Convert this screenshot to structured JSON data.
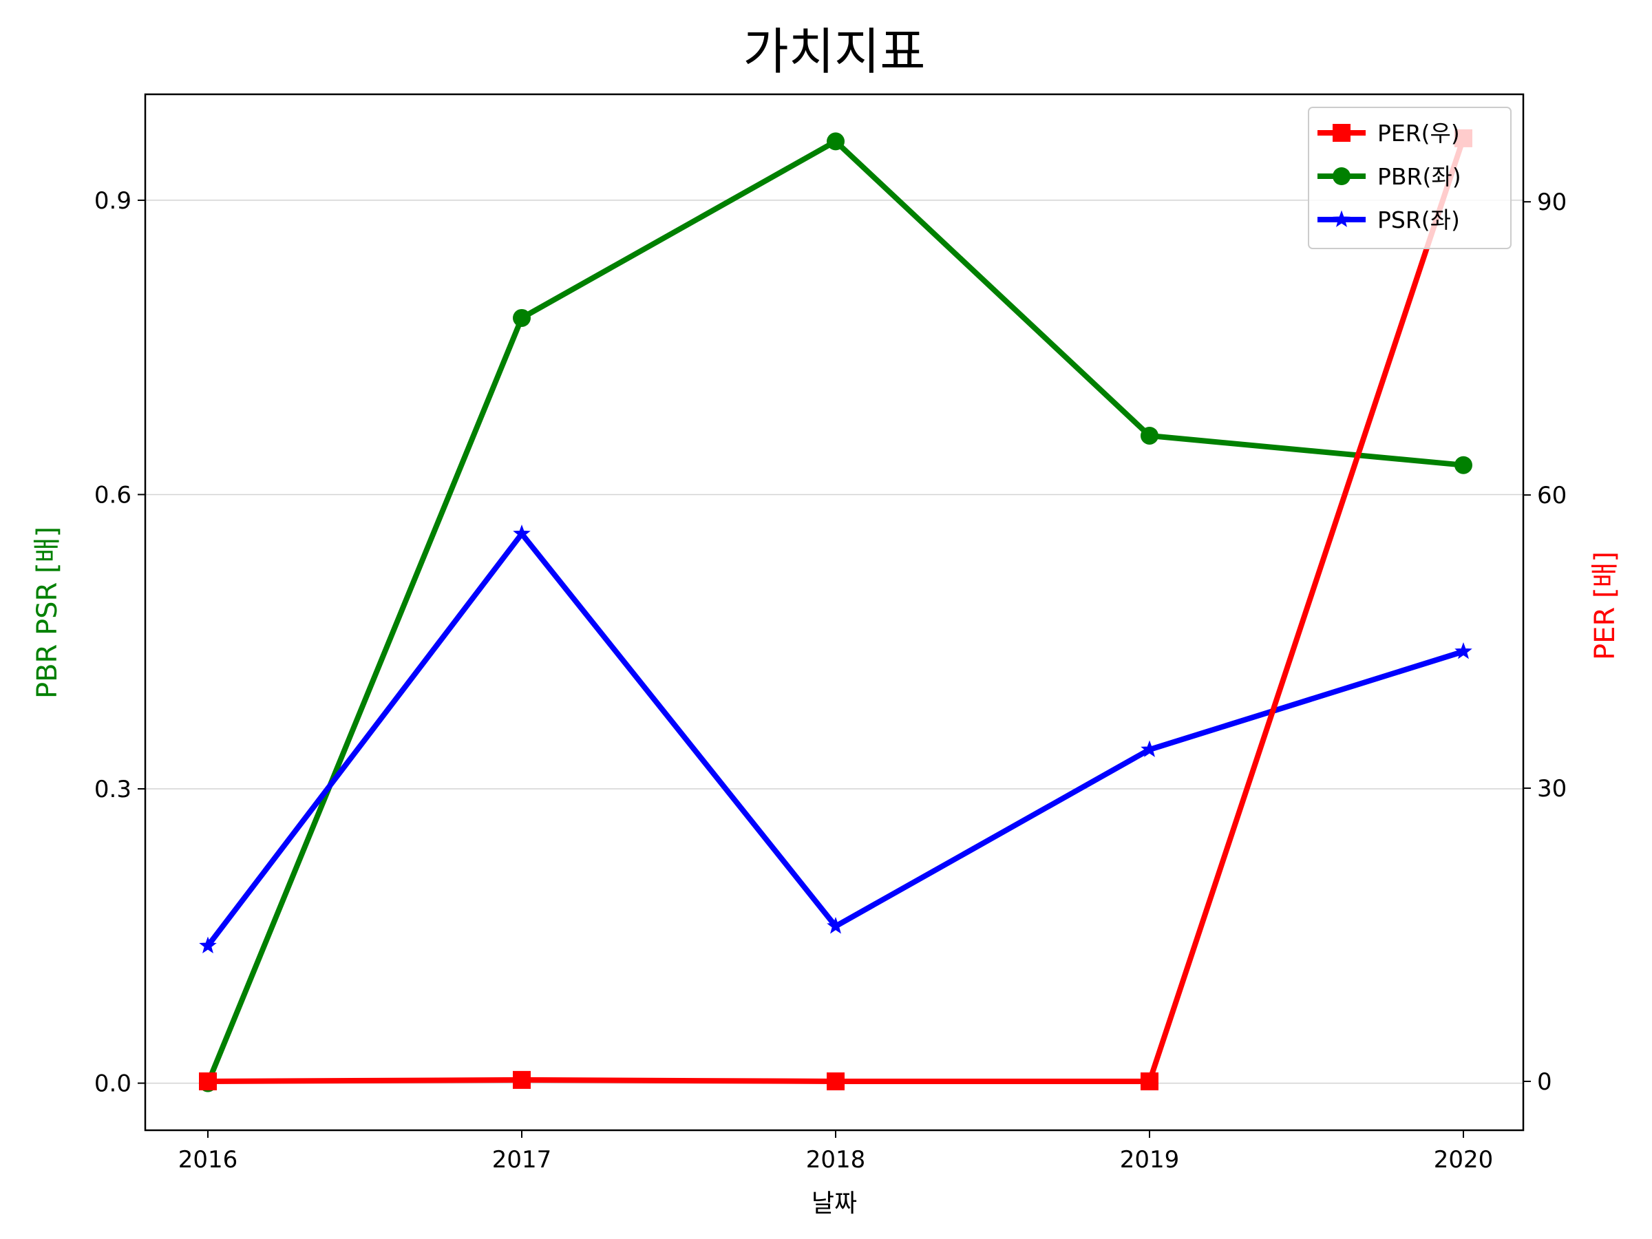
{
  "chart_data": {
    "type": "line",
    "title": "가치지표",
    "xlabel": "날짜",
    "ylabel_left": "PBR PSR [배]",
    "ylabel_right": "PER [배]",
    "ylabel_left_color": "#008000",
    "ylabel_right_color": "#ff0000",
    "categories": [
      "2016",
      "2017",
      "2018",
      "2019",
      "2020"
    ],
    "ylim_left": [
      -0.048,
      1.008
    ],
    "ylim_right": [
      -5,
      101
    ],
    "yticks_left": [
      "0.0",
      "0.3",
      "0.6",
      "0.9"
    ],
    "yticks_left_values": [
      0.0,
      0.3,
      0.6,
      0.9
    ],
    "yticks_right": [
      "0",
      "30",
      "60",
      "90"
    ],
    "yticks_right_values": [
      0,
      30,
      60,
      90
    ],
    "grid": "horizontal (left axis)",
    "legend_position": "top-right",
    "series": [
      {
        "name": "PER(우)",
        "axis": "right",
        "color": "#ff0000",
        "marker": "square",
        "values": [
          0.0,
          0.15,
          0.0,
          0.0,
          96.5
        ]
      },
      {
        "name": "PBR(좌)",
        "axis": "left",
        "color": "#008000",
        "marker": "circle",
        "values": [
          0.0,
          0.78,
          0.96,
          0.66,
          0.63
        ]
      },
      {
        "name": "PSR(좌)",
        "axis": "left",
        "color": "#0000ff",
        "marker": "star",
        "values": [
          0.14,
          0.56,
          0.16,
          0.34,
          0.44
        ]
      }
    ]
  }
}
